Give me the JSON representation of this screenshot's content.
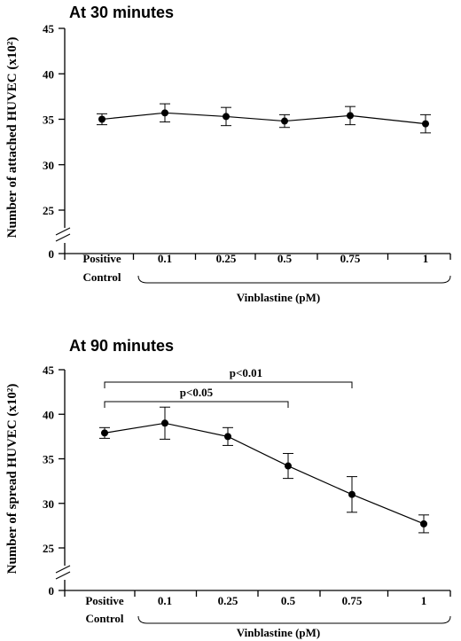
{
  "chart_data": [
    {
      "type": "line",
      "title": "At 30 minutes",
      "ylabel": "Number of attached HUVEC (x10²)",
      "xlabel": "",
      "group_label": "Vinblastine (pM)",
      "categories": [
        "Positive Control",
        "0.1",
        "0.25",
        "0.5",
        "0.75",
        "1"
      ],
      "yticks": [
        0,
        25,
        30,
        35,
        40,
        45
      ],
      "ylim": [
        0,
        45
      ],
      "axis_break": true,
      "series": [
        {
          "values": [
            35.0,
            35.7,
            35.3,
            34.8,
            35.4,
            34.5
          ],
          "errors": [
            0.6,
            1.0,
            1.0,
            0.7,
            1.0,
            1.0
          ]
        }
      ],
      "annotations": []
    },
    {
      "type": "line",
      "title": "At 90 minutes",
      "ylabel": "Number of spread HUVEC (x10²)",
      "xlabel": "",
      "group_label": "Vinblastine (pM)",
      "categories": [
        "Positive Control",
        "0.1",
        "0.25",
        "0.5",
        "0.75",
        "1"
      ],
      "yticks": [
        0,
        25,
        30,
        35,
        40,
        45
      ],
      "ylim": [
        0,
        45
      ],
      "axis_break": true,
      "series": [
        {
          "values": [
            37.9,
            39.0,
            37.5,
            34.2,
            31.0,
            27.7
          ],
          "errors": [
            0.6,
            1.8,
            1.0,
            1.4,
            2.0,
            1.0
          ]
        }
      ],
      "annotations": [
        {
          "text": "p<0.01",
          "from": 0,
          "to": 4
        },
        {
          "text": "p<0.05",
          "from": 0,
          "to": 3
        }
      ]
    }
  ]
}
